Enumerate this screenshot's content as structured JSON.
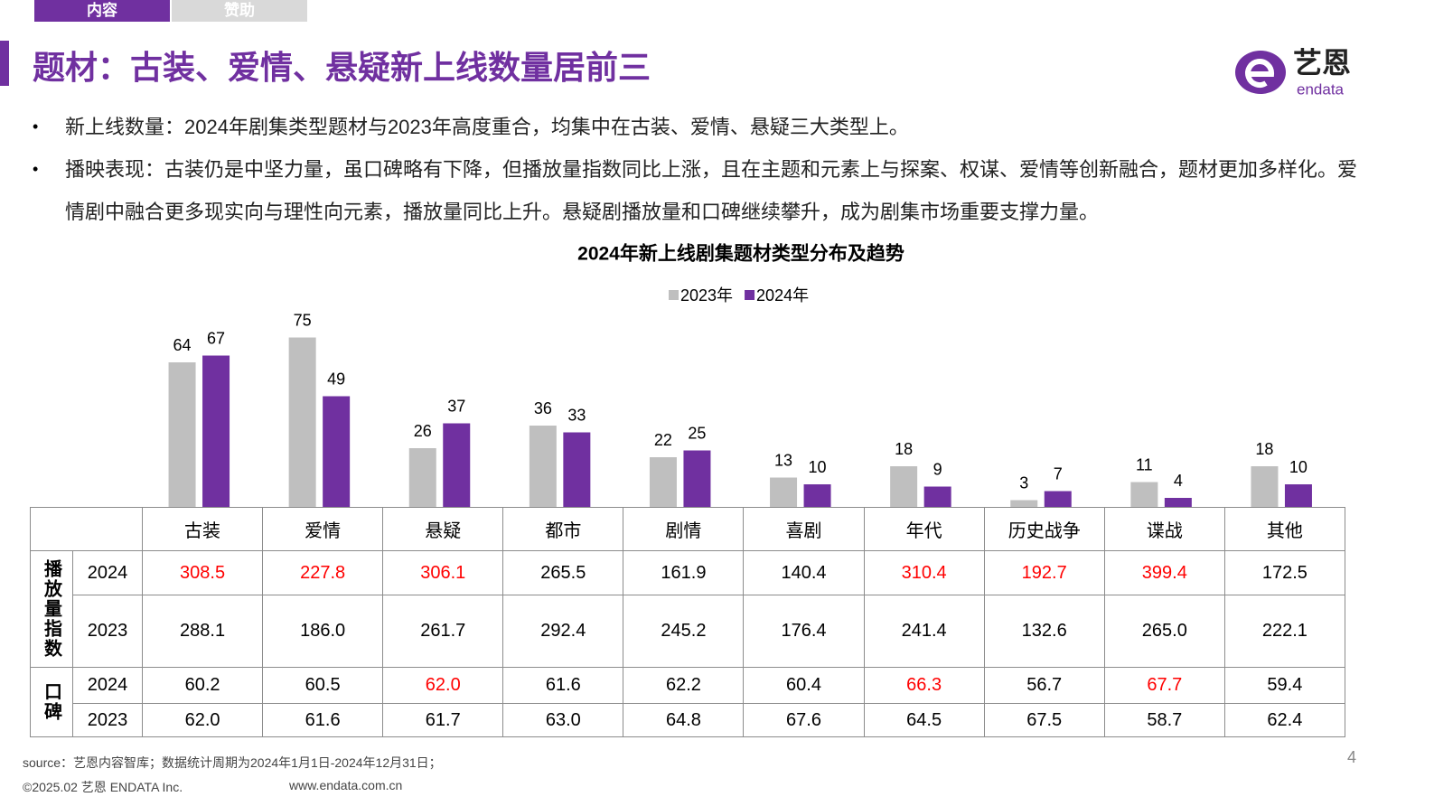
{
  "nav": {
    "tabs": [
      "内容",
      "赞助"
    ]
  },
  "header": {
    "title": "题材：古装、爱情、悬疑新上线数量居前三",
    "logo": {
      "brand": "艺恩",
      "sub": "endata"
    }
  },
  "bullets": [
    "新上线数量：2024年剧集类型题材与2023年高度重合，均集中在古装、爱情、悬疑三大类型上。",
    "播映表现：古装仍是中坚力量，虽口碑略有下降，但播放量指数同比上涨，且在主题和元素上与探案、权谋、爱情等创新融合，题材更加多样化。爱情剧中融合更多现实向与理性向元素，播放量同比上升。悬疑剧播放量和口碑继续攀升，成为剧集市场重要支撑力量。"
  ],
  "chart_data": {
    "type": "bar",
    "title": "2024年新上线剧集题材类型分布及趋势",
    "categories": [
      "古装",
      "爱情",
      "悬疑",
      "都市",
      "剧情",
      "喜剧",
      "年代",
      "历史战争",
      "谍战",
      "其他"
    ],
    "series": [
      {
        "name": "2023年",
        "color": "#bfbfbf",
        "values": [
          64,
          75,
          26,
          36,
          22,
          13,
          18,
          3,
          11,
          18
        ]
      },
      {
        "name": "2024年",
        "color": "#7030a0",
        "values": [
          67,
          49,
          37,
          33,
          25,
          10,
          9,
          7,
          4,
          10
        ]
      }
    ],
    "ylim": [
      0,
      80
    ],
    "legend": "top"
  },
  "table": {
    "groups": [
      {
        "label": "播放量指数",
        "rows": [
          {
            "year": "2024",
            "cells": [
              "308.5",
              "227.8",
              "306.1",
              "265.5",
              "161.9",
              "140.4",
              "310.4",
              "192.7",
              "399.4",
              "172.5"
            ],
            "colors": [
              "#ff0000",
              "#ff0000",
              "#ff0000",
              "#000000",
              "#000000",
              "#000000",
              "#ff0000",
              "#ff0000",
              "#ff0000",
              "#000000"
            ]
          },
          {
            "year": "2023",
            "cells": [
              "288.1",
              "186.0",
              "261.7",
              "292.4",
              "245.2",
              "176.4",
              "241.4",
              "132.6",
              "265.0",
              "222.1"
            ],
            "colors": [
              "#000000",
              "#000000",
              "#000000",
              "#000000",
              "#000000",
              "#000000",
              "#000000",
              "#000000",
              "#000000",
              "#000000"
            ]
          }
        ]
      },
      {
        "label": "口碑",
        "rows": [
          {
            "year": "2024",
            "cells": [
              "60.2",
              "60.5",
              "62.0",
              "61.6",
              "62.2",
              "60.4",
              "66.3",
              "56.7",
              "67.7",
              "59.4"
            ],
            "colors": [
              "#000000",
              "#000000",
              "#ff0000",
              "#000000",
              "#000000",
              "#000000",
              "#ff0000",
              "#000000",
              "#ff0000",
              "#000000"
            ]
          },
          {
            "year": "2023",
            "cells": [
              "62.0",
              "61.6",
              "61.7",
              "63.0",
              "64.8",
              "67.6",
              "64.5",
              "67.5",
              "58.7",
              "62.4"
            ],
            "colors": [
              "#000000",
              "#000000",
              "#000000",
              "#000000",
              "#000000",
              "#000000",
              "#000000",
              "#000000",
              "#000000",
              "#000000"
            ]
          }
        ]
      }
    ]
  },
  "footer": {
    "source": "source：艺恩内容智库；数据统计周期为2024年1月1日-2024年12月31日；",
    "copyright": "©2025.02 艺恩 ENDATA Inc.",
    "url": "www.endata.com.cn",
    "page": "4"
  }
}
